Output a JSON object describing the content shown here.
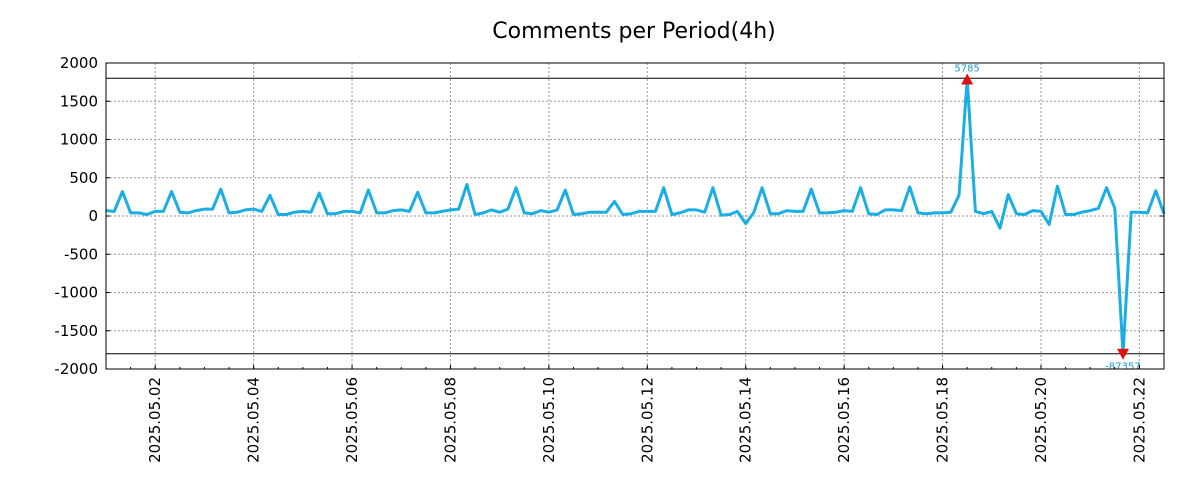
{
  "chart_data": {
    "type": "line",
    "title": "Comments per Period(4h)",
    "xlabel": "",
    "ylabel": "",
    "ylim": [
      -2000,
      2000
    ],
    "yticks": [
      2000,
      1500,
      1000,
      500,
      0,
      -500,
      -1000,
      -1500,
      -2000
    ],
    "xrange": [
      "2025-05-01T00:00",
      "2025-05-22T12:00"
    ],
    "xticks": [
      "2025.05.02",
      "2025.05.04",
      "2025.05.06",
      "2025.05.08",
      "2025.05.10",
      "2025.05.12",
      "2025.05.14",
      "2025.05.16",
      "2025.05.18",
      "2025.05.20",
      "2025.05.22"
    ],
    "clip_lines": [
      1800,
      -1800
    ],
    "grid": true,
    "color": "#1aaee5",
    "marker_color": "#dd1111",
    "series": [
      {
        "x": [
          "2025-05-01T00:00",
          "2025-05-01T04:00",
          "2025-05-01T08:00",
          "2025-05-01T12:00",
          "2025-05-01T16:00",
          "2025-05-01T20:00",
          "2025-05-02T00:00",
          "2025-05-02T04:00",
          "2025-05-02T08:00",
          "2025-05-02T12:00",
          "2025-05-02T16:00",
          "2025-05-02T20:00",
          "2025-05-03T00:00",
          "2025-05-03T04:00",
          "2025-05-03T08:00",
          "2025-05-03T12:00",
          "2025-05-03T16:00",
          "2025-05-03T20:00",
          "2025-05-04T00:00",
          "2025-05-04T04:00",
          "2025-05-04T08:00",
          "2025-05-04T12:00",
          "2025-05-04T16:00",
          "2025-05-04T20:00",
          "2025-05-05T00:00",
          "2025-05-05T04:00",
          "2025-05-05T08:00",
          "2025-05-05T12:00",
          "2025-05-05T16:00",
          "2025-05-05T20:00",
          "2025-05-06T00:00",
          "2025-05-06T04:00",
          "2025-05-06T08:00",
          "2025-05-06T12:00",
          "2025-05-06T16:00",
          "2025-05-06T20:00",
          "2025-05-07T00:00",
          "2025-05-07T04:00",
          "2025-05-07T08:00",
          "2025-05-07T12:00",
          "2025-05-07T16:00",
          "2025-05-07T20:00",
          "2025-05-08T00:00",
          "2025-05-08T04:00",
          "2025-05-08T08:00",
          "2025-05-08T12:00",
          "2025-05-08T16:00",
          "2025-05-08T20:00",
          "2025-05-09T00:00",
          "2025-05-09T04:00",
          "2025-05-09T08:00",
          "2025-05-09T12:00",
          "2025-05-09T16:00",
          "2025-05-09T20:00",
          "2025-05-10T00:00",
          "2025-05-10T04:00",
          "2025-05-10T08:00",
          "2025-05-10T12:00",
          "2025-05-10T16:00",
          "2025-05-10T20:00",
          "2025-05-11T00:00",
          "2025-05-11T04:00",
          "2025-05-11T08:00",
          "2025-05-11T12:00",
          "2025-05-11T16:00",
          "2025-05-11T20:00",
          "2025-05-12T00:00",
          "2025-05-12T04:00",
          "2025-05-12T08:00",
          "2025-05-12T12:00",
          "2025-05-12T16:00",
          "2025-05-12T20:00",
          "2025-05-13T00:00",
          "2025-05-13T04:00",
          "2025-05-13T08:00",
          "2025-05-13T12:00",
          "2025-05-13T16:00",
          "2025-05-13T20:00",
          "2025-05-14T00:00",
          "2025-05-14T04:00",
          "2025-05-14T08:00",
          "2025-05-14T12:00",
          "2025-05-14T16:00",
          "2025-05-14T20:00",
          "2025-05-15T00:00",
          "2025-05-15T04:00",
          "2025-05-15T08:00",
          "2025-05-15T12:00",
          "2025-05-15T16:00",
          "2025-05-15T20:00",
          "2025-05-16T00:00",
          "2025-05-16T04:00",
          "2025-05-16T08:00",
          "2025-05-16T12:00",
          "2025-05-16T16:00",
          "2025-05-16T20:00",
          "2025-05-17T00:00",
          "2025-05-17T04:00",
          "2025-05-17T08:00",
          "2025-05-17T12:00",
          "2025-05-17T16:00",
          "2025-05-17T20:00",
          "2025-05-18T00:00",
          "2025-05-18T04:00",
          "2025-05-18T08:00",
          "2025-05-18T12:00",
          "2025-05-18T16:00",
          "2025-05-18T20:00",
          "2025-05-19T00:00",
          "2025-05-19T04:00",
          "2025-05-19T08:00",
          "2025-05-19T12:00",
          "2025-05-19T16:00",
          "2025-05-19T20:00",
          "2025-05-20T00:00",
          "2025-05-20T04:00",
          "2025-05-20T08:00",
          "2025-05-20T12:00",
          "2025-05-20T16:00",
          "2025-05-20T20:00",
          "2025-05-21T00:00",
          "2025-05-21T04:00",
          "2025-05-21T08:00",
          "2025-05-21T12:00",
          "2025-05-21T16:00",
          "2025-05-21T20:00",
          "2025-05-22T00:00",
          "2025-05-22T04:00",
          "2025-05-22T08:00",
          "2025-05-22T12:00"
        ],
        "values": [
          70,
          60,
          320,
          40,
          40,
          20,
          60,
          60,
          320,
          50,
          40,
          70,
          90,
          90,
          350,
          40,
          50,
          80,
          90,
          60,
          270,
          20,
          20,
          50,
          60,
          50,
          300,
          30,
          30,
          60,
          60,
          40,
          340,
          40,
          40,
          70,
          80,
          60,
          310,
          40,
          40,
          60,
          80,
          90,
          410,
          20,
          40,
          80,
          50,
          90,
          370,
          40,
          30,
          70,
          50,
          80,
          340,
          20,
          30,
          50,
          50,
          50,
          190,
          20,
          30,
          60,
          60,
          60,
          370,
          20,
          40,
          80,
          80,
          50,
          370,
          10,
          20,
          60,
          -100,
          50,
          370,
          30,
          30,
          70,
          60,
          60,
          350,
          40,
          40,
          50,
          70,
          60,
          370,
          30,
          20,
          80,
          80,
          70,
          380,
          40,
          30,
          40,
          40,
          50,
          270,
          1785,
          60,
          30,
          60,
          -160,
          280,
          30,
          20,
          70,
          60,
          -110,
          390,
          20,
          20,
          50,
          70,
          100,
          370,
          100,
          -1800,
          50,
          50,
          40,
          330,
          30
        ]
      }
    ],
    "annotations": [
      {
        "x": "2025-05-18T12:00",
        "y": 1785,
        "text": "5785",
        "marker": "triangle-up"
      },
      {
        "x": "2025-05-21T16:00",
        "y": -1800,
        "text": "-87357",
        "marker": "triangle-down"
      }
    ]
  }
}
